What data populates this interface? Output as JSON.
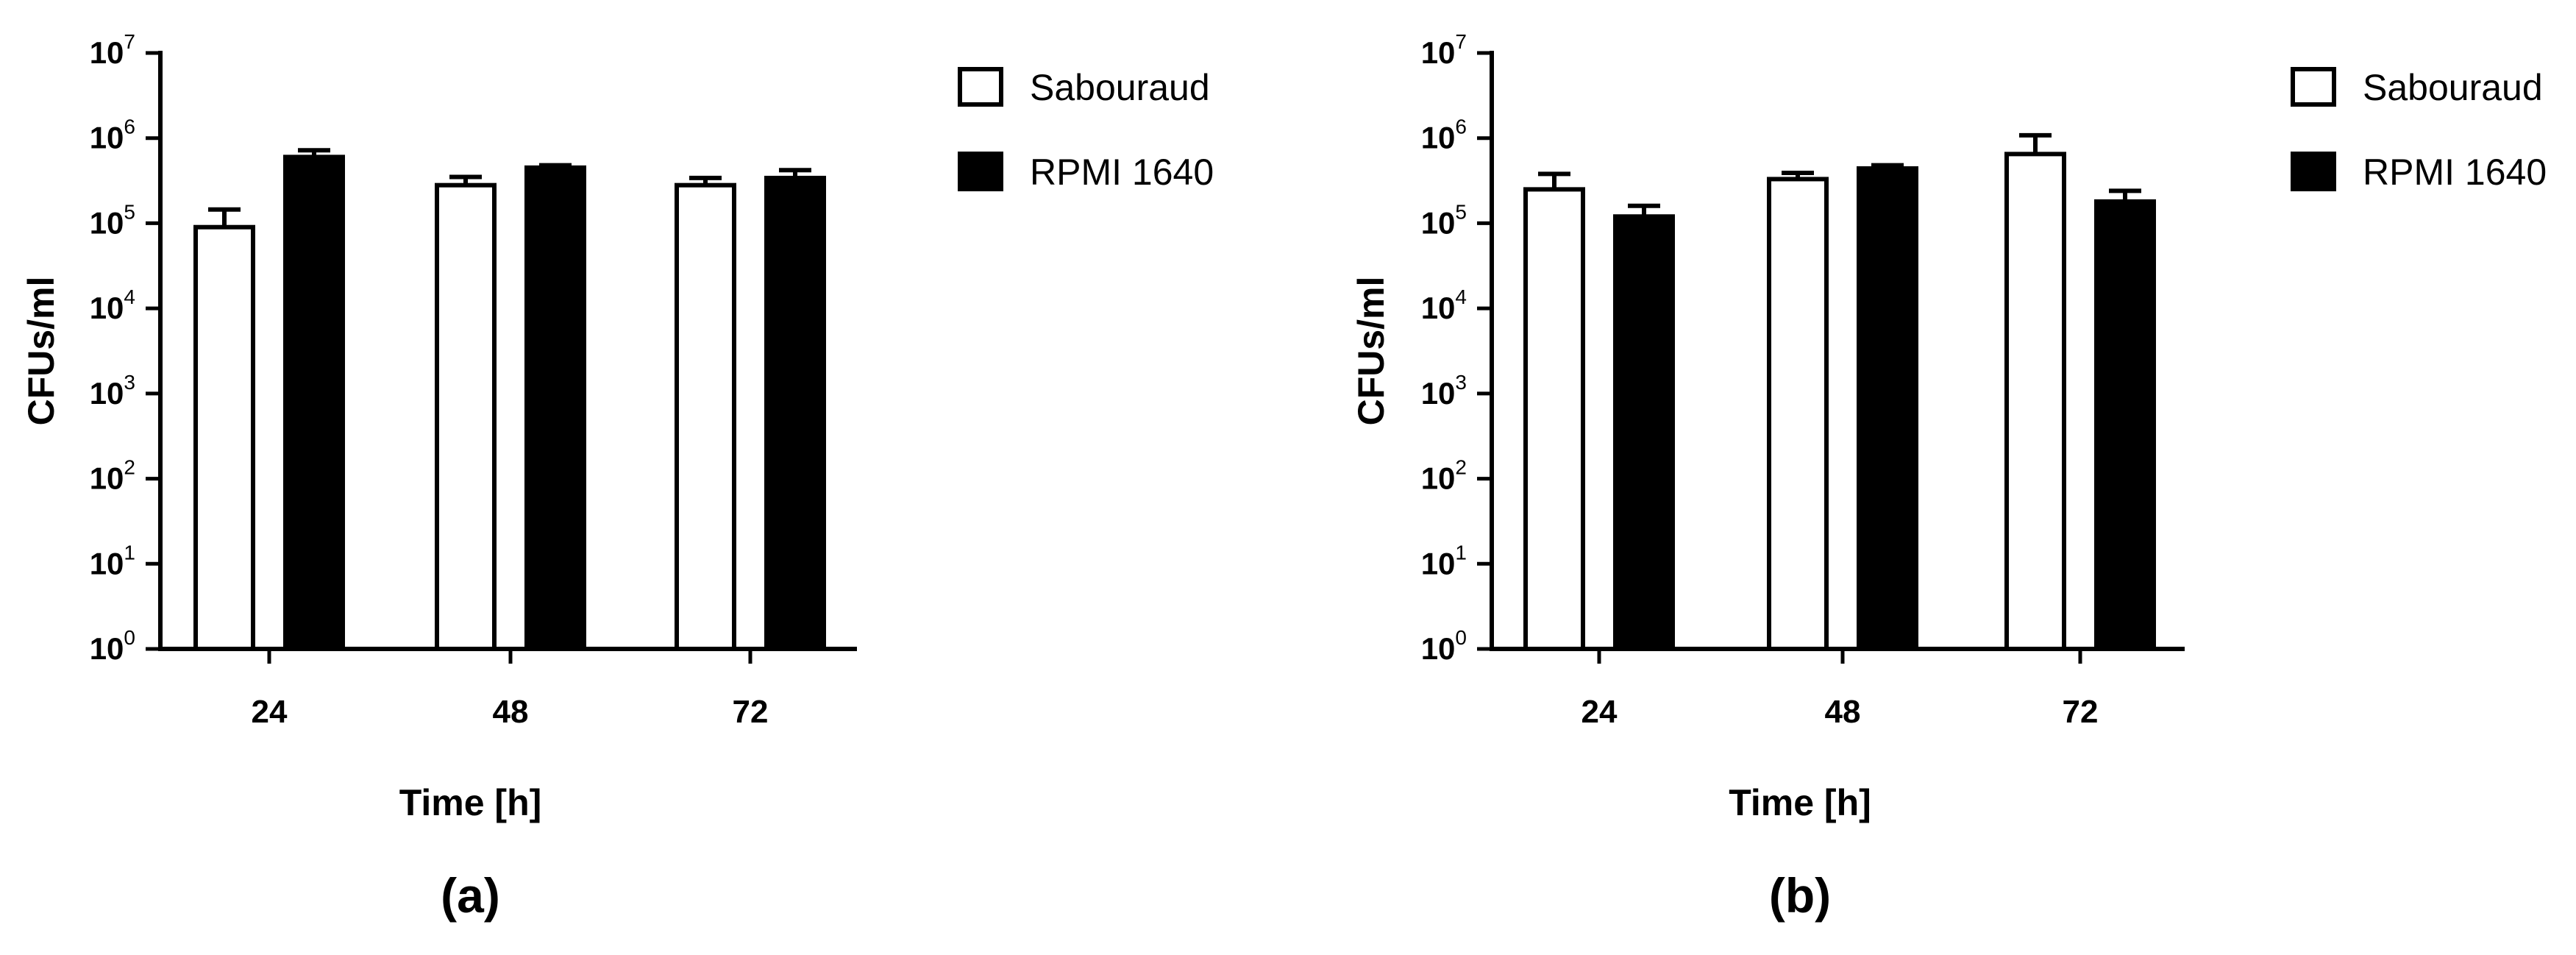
{
  "chart_data": [
    {
      "type": "bar",
      "panel_label": "(a)",
      "xlabel": "Time [h]",
      "ylabel": "CFUs/ml",
      "yscale": "log",
      "ylim": [
        1,
        10000000
      ],
      "yticks": [
        {
          "base": "10",
          "exp": "0"
        },
        {
          "base": "10",
          "exp": "1"
        },
        {
          "base": "10",
          "exp": "2"
        },
        {
          "base": "10",
          "exp": "3"
        },
        {
          "base": "10",
          "exp": "4"
        },
        {
          "base": "10",
          "exp": "5"
        },
        {
          "base": "10",
          "exp": "6"
        },
        {
          "base": "10",
          "exp": "7"
        }
      ],
      "categories": [
        "24",
        "48",
        "72"
      ],
      "legend_position": "top-right",
      "series": [
        {
          "name": "Sabouraud",
          "fill": "#ffffff",
          "values": [
            90000,
            280000,
            280000
          ],
          "error_upper": [
            145000,
            350000,
            340000
          ]
        },
        {
          "name": "RPMI 1640",
          "fill": "#000000",
          "values": [
            600000,
            450000,
            340000
          ],
          "error_upper": [
            720000,
            480000,
            420000
          ]
        }
      ]
    },
    {
      "type": "bar",
      "panel_label": "(b)",
      "xlabel": "Time [h]",
      "ylabel": "CFUs/ml",
      "yscale": "log",
      "ylim": [
        1,
        10000000
      ],
      "yticks": [
        {
          "base": "10",
          "exp": "0"
        },
        {
          "base": "10",
          "exp": "1"
        },
        {
          "base": "10",
          "exp": "2"
        },
        {
          "base": "10",
          "exp": "3"
        },
        {
          "base": "10",
          "exp": "4"
        },
        {
          "base": "10",
          "exp": "5"
        },
        {
          "base": "10",
          "exp": "6"
        },
        {
          "base": "10",
          "exp": "7"
        }
      ],
      "categories": [
        "24",
        "48",
        "72"
      ],
      "legend_position": "top-right",
      "series": [
        {
          "name": "Sabouraud",
          "fill": "#ffffff",
          "values": [
            250000,
            330000,
            650000
          ],
          "error_upper": [
            380000,
            390000,
            1080000
          ]
        },
        {
          "name": "RPMI 1640",
          "fill": "#000000",
          "values": [
            120000,
            440000,
            180000
          ],
          "error_upper": [
            160000,
            480000,
            240000
          ]
        }
      ]
    }
  ]
}
